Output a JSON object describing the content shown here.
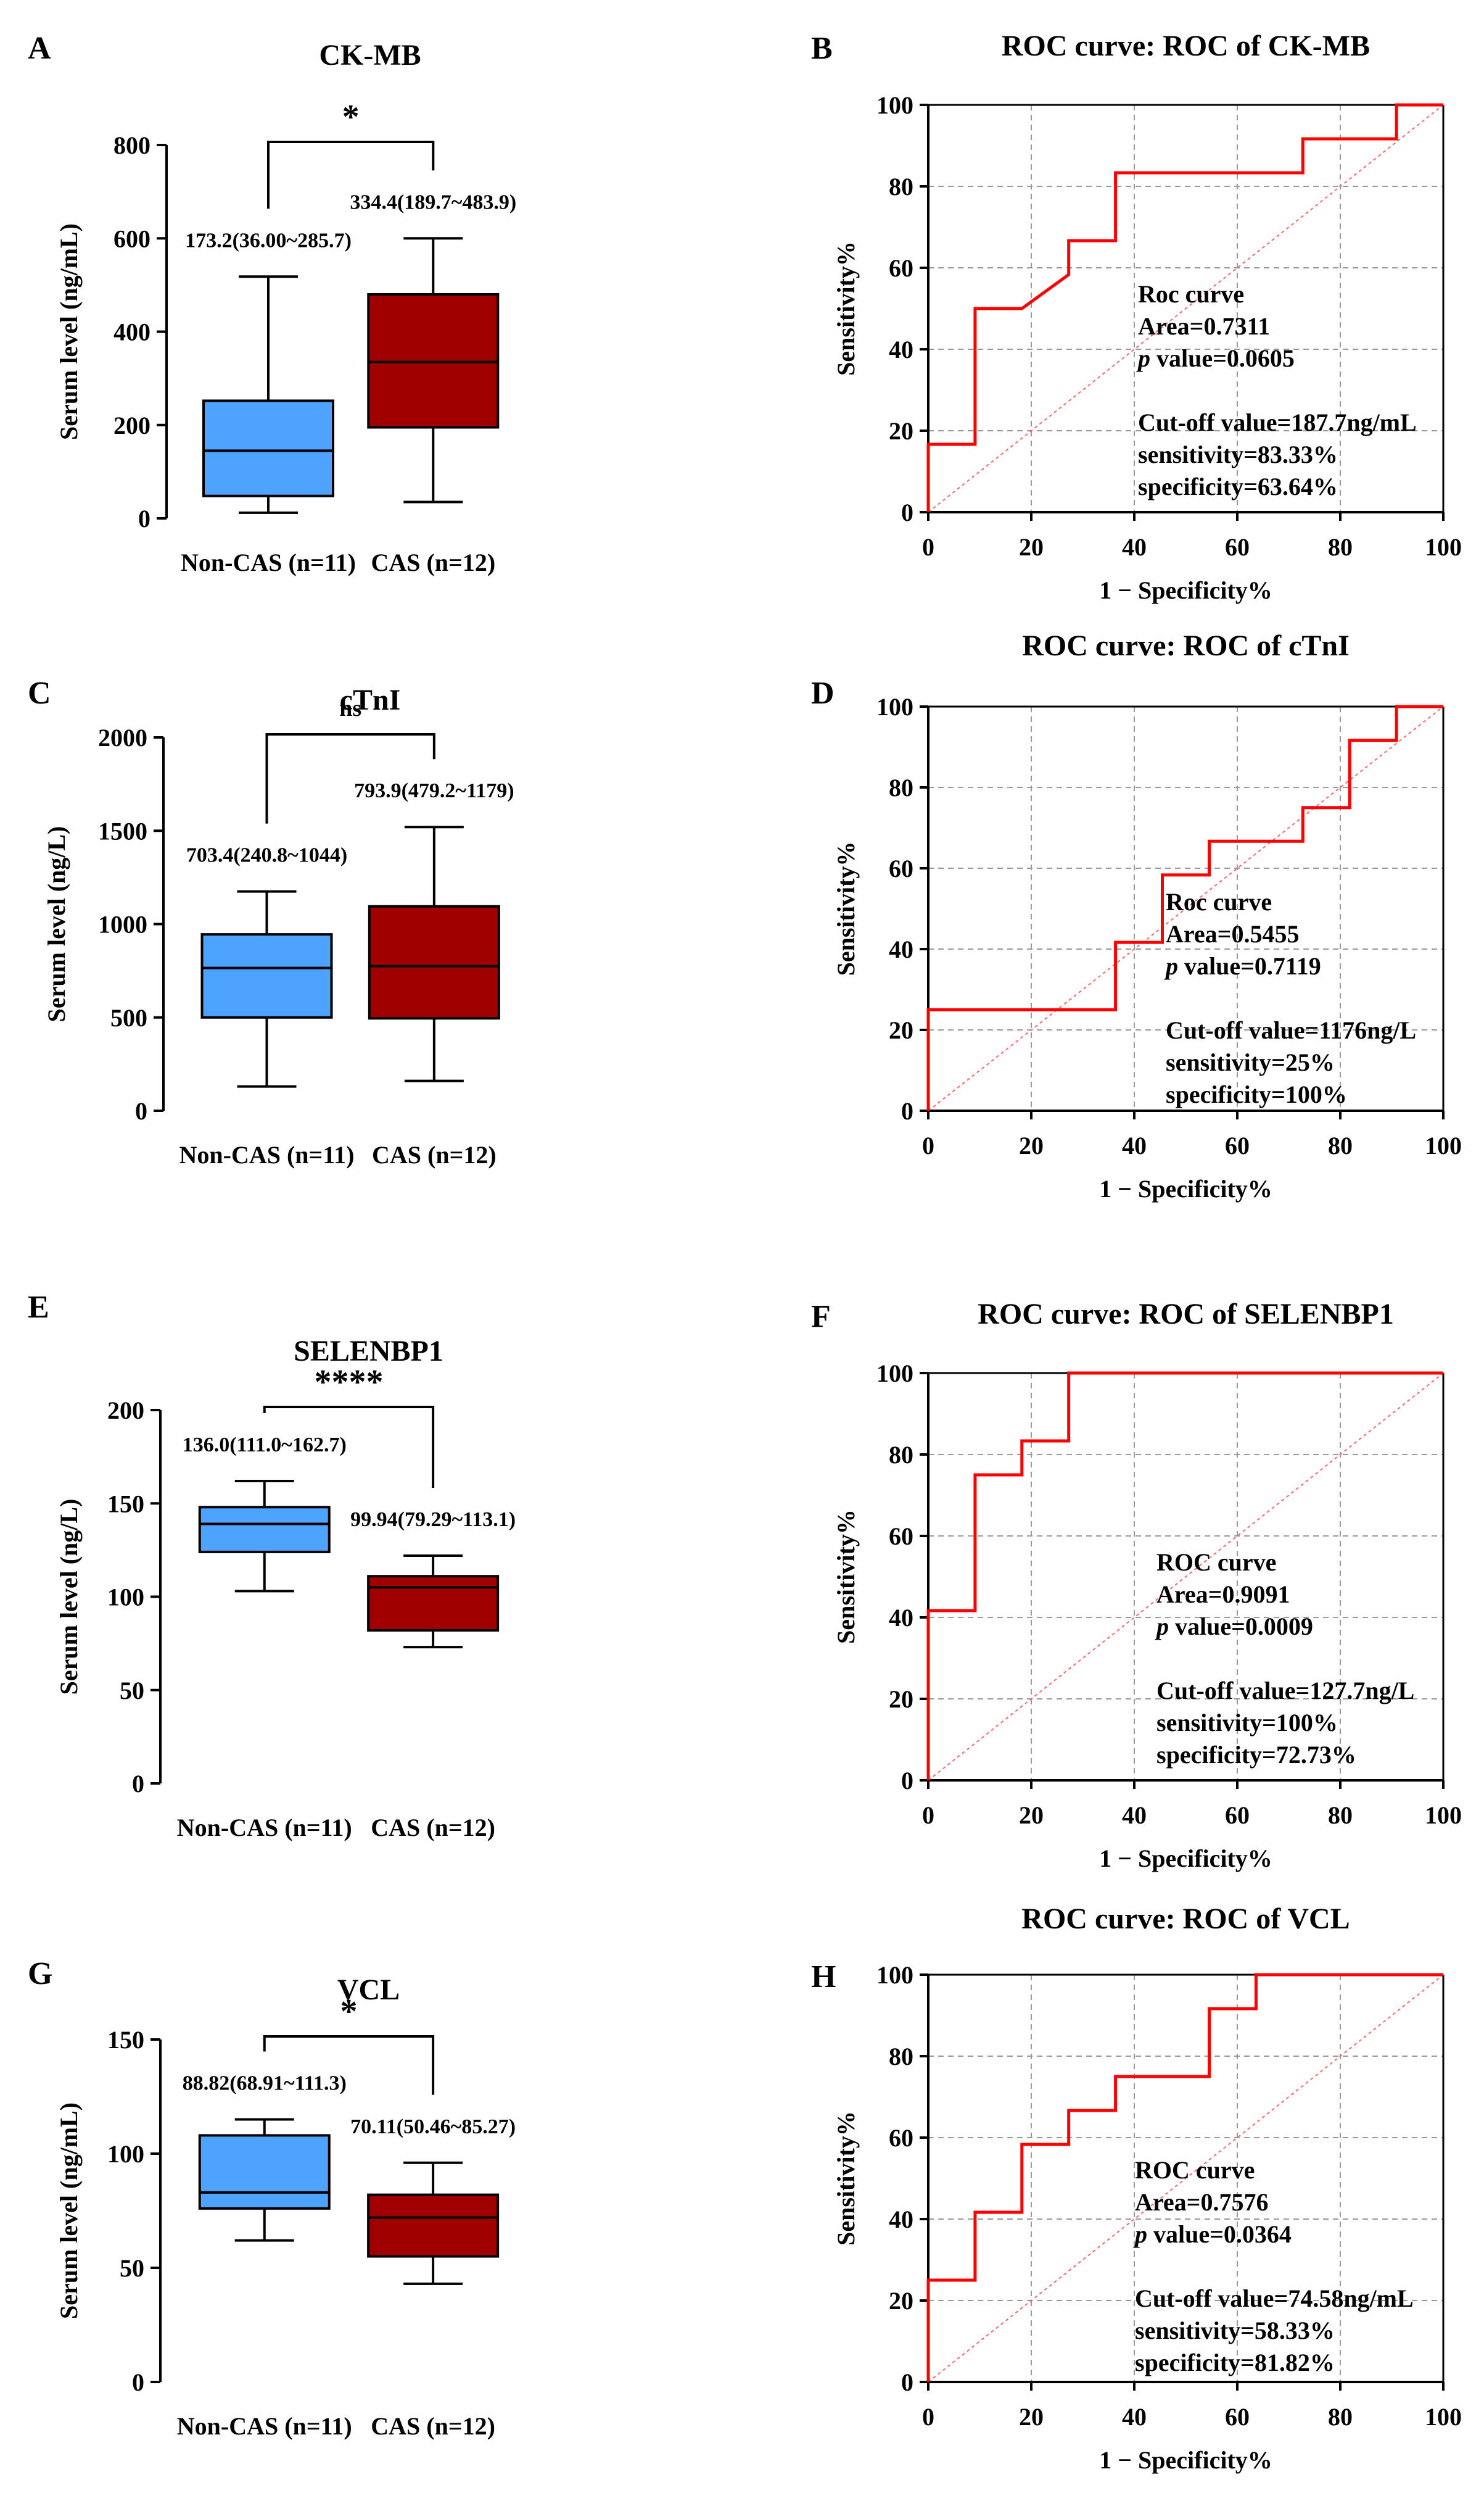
{
  "figure": {
    "colors": {
      "non_cas": "#4da3ff",
      "cas": "#a00000",
      "roc": "#ff0000",
      "ref": "#ff6666",
      "grid": "#9a9a9a"
    }
  },
  "chart_data": [
    {
      "id": "A",
      "type": "box",
      "panel_label": "A",
      "title": "CK-MB",
      "ylabel": "Serum level (ng/mL)",
      "ylim": [
        0,
        800
      ],
      "yticks": [
        0,
        200,
        400,
        600,
        800
      ],
      "significance": "*",
      "groups": [
        {
          "name": "Non-CAS (n=11)",
          "min": 12,
          "q1": 48,
          "median": 145,
          "q3": 252,
          "max": 518,
          "label": "173.2(36.00~285.7)"
        },
        {
          "name": "CAS (n=12)",
          "min": 35,
          "q1": 195,
          "median": 335,
          "q3": 480,
          "max": 600,
          "label": "334.4(189.7~483.9)"
        }
      ]
    },
    {
      "id": "B",
      "type": "line",
      "panel_label": "B",
      "title": "ROC curve: ROC of CK-MB",
      "xlabel": "1 − Specificity%",
      "ylabel": "Sensitivity%",
      "xlim": [
        0,
        100
      ],
      "ylim": [
        0,
        100
      ],
      "ticks": [
        0,
        20,
        40,
        60,
        80,
        100
      ],
      "grid": true,
      "x": [
        0,
        0,
        9.09,
        9.09,
        18.18,
        27.27,
        27.27,
        36.36,
        36.36,
        72.73,
        72.73,
        90.91,
        90.91,
        100
      ],
      "y": [
        0,
        16.67,
        16.67,
        50,
        50,
        58.33,
        66.67,
        66.67,
        83.33,
        83.33,
        91.67,
        91.67,
        100,
        100
      ],
      "annotation": [
        "Roc curve",
        "Area=0.7311",
        "value=0.0605",
        "",
        "Cut-off value=187.7ng/mL",
        "sensitivity=83.33%",
        "specificity=63.64%"
      ]
    },
    {
      "id": "C",
      "type": "box",
      "panel_label": "C",
      "title": "cTnI",
      "ylabel": "Serum level (ng/L)",
      "ylim": [
        0,
        2000
      ],
      "yticks": [
        0,
        500,
        1000,
        1500,
        2000
      ],
      "significance": "ns",
      "groups": [
        {
          "name": "Non-CAS (n=11)",
          "min": 130,
          "q1": 500,
          "median": 765,
          "q3": 945,
          "max": 1175,
          "label": "703.4(240.8~1044)"
        },
        {
          "name": "CAS (n=12)",
          "min": 160,
          "q1": 495,
          "median": 775,
          "q3": 1095,
          "max": 1520,
          "label": "793.9(479.2~1179)"
        }
      ]
    },
    {
      "id": "D",
      "type": "line",
      "panel_label": "D",
      "title": "ROC curve: ROC of cTnI",
      "xlabel": "1 − Specificity%",
      "ylabel": "Sensitivity%",
      "xlim": [
        0,
        100
      ],
      "ylim": [
        0,
        100
      ],
      "ticks": [
        0,
        20,
        40,
        60,
        80,
        100
      ],
      "grid": true,
      "x": [
        0,
        0,
        36.36,
        36.36,
        45.45,
        45.45,
        54.55,
        54.55,
        72.73,
        72.73,
        81.82,
        81.82,
        90.91,
        90.91,
        100
      ],
      "y": [
        0,
        25,
        25,
        41.67,
        41.67,
        58.33,
        58.33,
        66.67,
        66.67,
        75,
        75,
        91.67,
        91.67,
        100,
        100
      ],
      "annotation": [
        "Roc curve",
        "Area=0.5455",
        "value=0.7119",
        "",
        "Cut-off value=1176ng/L",
        "sensitivity=25%",
        "specificity=100%"
      ]
    },
    {
      "id": "E",
      "type": "box",
      "panel_label": "E",
      "title": "SELENBP1",
      "ylabel": "Serum level (ng/L)",
      "ylim": [
        0,
        200
      ],
      "yticks": [
        0,
        50,
        100,
        150,
        200
      ],
      "significance": "****",
      "groups": [
        {
          "name": "Non-CAS (n=11)",
          "min": 103,
          "q1": 124,
          "median": 139,
          "q3": 148,
          "max": 162,
          "label": "136.0(111.0~162.7)"
        },
        {
          "name": "CAS (n=12)",
          "min": 73,
          "q1": 82,
          "median": 105,
          "q3": 111,
          "max": 122,
          "label": "99.94(79.29~113.1)"
        }
      ]
    },
    {
      "id": "F",
      "type": "line",
      "panel_label": "F",
      "title": "ROC curve: ROC of SELENBP1",
      "xlabel": "1 − Specificity%",
      "ylabel": "Sensitivity%",
      "xlim": [
        0,
        100
      ],
      "ylim": [
        0,
        100
      ],
      "ticks": [
        0,
        20,
        40,
        60,
        80,
        100
      ],
      "grid": true,
      "x": [
        0,
        0,
        9.09,
        9.09,
        18.18,
        18.18,
        27.27,
        27.27,
        100
      ],
      "y": [
        0,
        41.67,
        41.67,
        75,
        75,
        83.33,
        83.33,
        100,
        100
      ],
      "annotation": [
        "ROC curve",
        "Area=0.9091",
        "value=0.0009",
        "",
        "Cut-off value=127.7ng/L",
        "sensitivity=100%",
        "specificity=72.73%"
      ]
    },
    {
      "id": "G",
      "type": "box",
      "panel_label": "G",
      "title": "VCL",
      "ylabel": "Serum level (ng/mL)",
      "ylim": [
        0,
        150
      ],
      "yticks": [
        0,
        50,
        100,
        150
      ],
      "significance": "*",
      "groups": [
        {
          "name": "Non-CAS (n=11)",
          "min": 62,
          "q1": 76,
          "median": 83,
          "q3": 108,
          "max": 115,
          "label": "88.82(68.91~111.3)"
        },
        {
          "name": "CAS (n=12)",
          "min": 43,
          "q1": 55,
          "median": 72,
          "q3": 82,
          "max": 96,
          "label": "70.11(50.46~85.27)"
        }
      ]
    },
    {
      "id": "H",
      "type": "line",
      "panel_label": "H",
      "title": "ROC curve: ROC of VCL",
      "xlabel": "1 − Specificity%",
      "ylabel": "Sensitivity%",
      "xlim": [
        0,
        100
      ],
      "ylim": [
        0,
        100
      ],
      "ticks": [
        0,
        20,
        40,
        60,
        80,
        100
      ],
      "grid": true,
      "x": [
        0,
        0,
        9.09,
        9.09,
        18.18,
        18.18,
        27.27,
        27.27,
        36.36,
        36.36,
        54.55,
        54.55,
        63.64,
        63.64,
        100
      ],
      "y": [
        0,
        25,
        25,
        41.67,
        41.67,
        58.33,
        58.33,
        66.67,
        66.67,
        75,
        75,
        91.67,
        91.67,
        100,
        100
      ],
      "annotation": [
        "ROC curve",
        "Area=0.7576",
        "value=0.0364",
        "",
        "Cut-off value=74.58ng/mL",
        "sensitivity=58.33%",
        "specificity=81.82%"
      ]
    }
  ]
}
